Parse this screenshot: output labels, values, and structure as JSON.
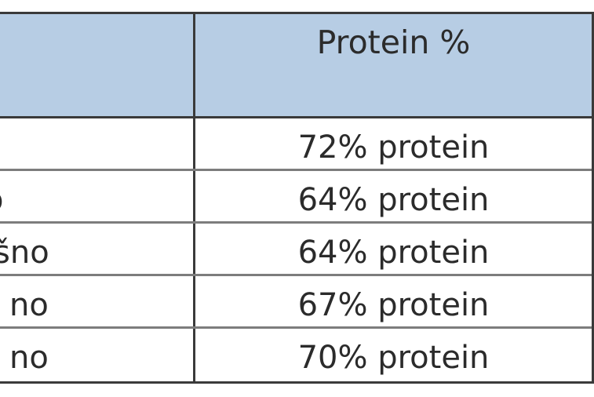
{
  "table": {
    "header": {
      "col_a": "",
      "col_b": "Protein %"
    },
    "rows": [
      {
        "col_a": "",
        "col_b": "72% protein"
      },
      {
        "col_a": "o",
        "col_b": "64% protein"
      },
      {
        "col_a": "šno",
        "col_b": "64% protein"
      },
      {
        "col_a": "no",
        "col_b": "67% protein"
      },
      {
        "col_a": "no",
        "col_b": "70% protein"
      }
    ]
  },
  "colors": {
    "header_background": "#b7cde4",
    "grid_line": "#3a3a3a",
    "row_divider": "#7d7d7d",
    "text": "#2b2b2b"
  }
}
